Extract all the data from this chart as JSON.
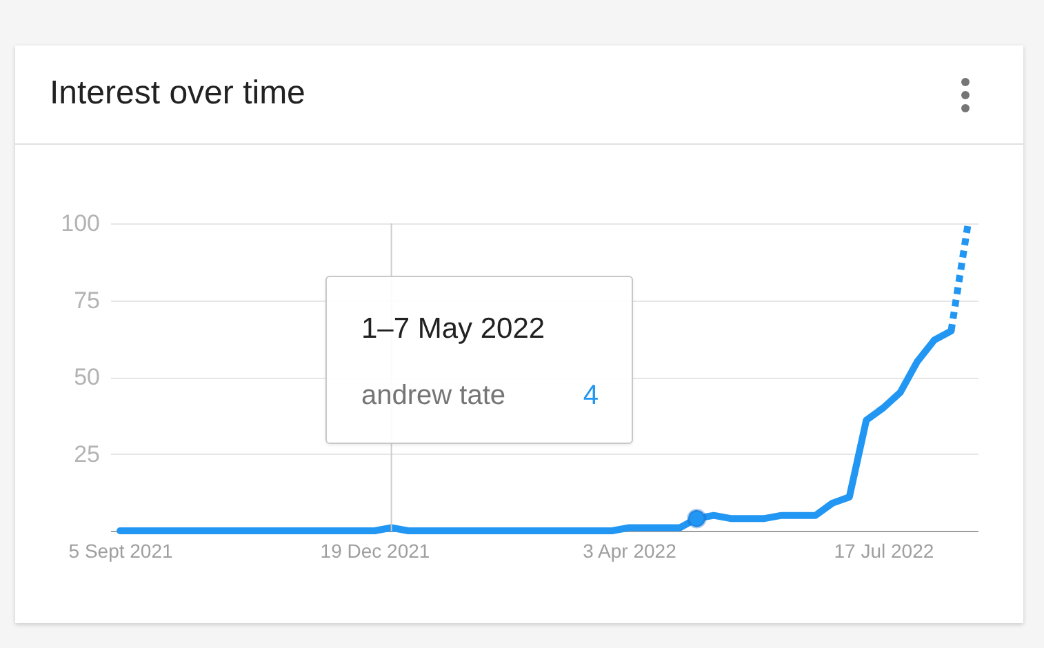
{
  "chart_data": {
    "type": "line",
    "title": "Interest over time",
    "x": [
      "2021-09-05",
      "2021-09-12",
      "2021-09-19",
      "2021-09-26",
      "2021-10-03",
      "2021-10-10",
      "2021-10-17",
      "2021-10-24",
      "2021-10-31",
      "2021-11-07",
      "2021-11-14",
      "2021-11-21",
      "2021-11-28",
      "2021-12-05",
      "2021-12-12",
      "2021-12-19",
      "2021-12-26",
      "2022-01-02",
      "2022-01-09",
      "2022-01-16",
      "2022-01-23",
      "2022-01-30",
      "2022-02-06",
      "2022-02-13",
      "2022-02-20",
      "2022-02-27",
      "2022-03-06",
      "2022-03-13",
      "2022-03-20",
      "2022-03-27",
      "2022-04-03",
      "2022-04-10",
      "2022-04-17",
      "2022-04-24",
      "2022-05-01",
      "2022-05-08",
      "2022-05-15",
      "2022-05-22",
      "2022-05-29",
      "2022-06-05",
      "2022-06-12",
      "2022-06-19",
      "2022-06-26",
      "2022-07-03",
      "2022-07-10",
      "2022-07-17",
      "2022-07-24",
      "2022-07-31",
      "2022-08-07",
      "2022-08-14",
      "2022-08-21"
    ],
    "series": [
      {
        "name": "andrew tate",
        "color": "#2196f3",
        "values": [
          0,
          0,
          0,
          0,
          0,
          0,
          0,
          0,
          0,
          0,
          0,
          0,
          0,
          0,
          0,
          0,
          1,
          0,
          0,
          0,
          0,
          0,
          0,
          0,
          0,
          0,
          0,
          0,
          0,
          0,
          1,
          1,
          1,
          1,
          4,
          5,
          4,
          4,
          4,
          5,
          5,
          5,
          9,
          11,
          36,
          40,
          45,
          55,
          62,
          65,
          null
        ]
      },
      {
        "color": "#2196f3",
        "line_style": "dotted",
        "values": [
          null,
          null,
          null,
          null,
          null,
          null,
          null,
          null,
          null,
          null,
          null,
          null,
          null,
          null,
          null,
          null,
          null,
          null,
          null,
          null,
          null,
          null,
          null,
          null,
          null,
          null,
          null,
          null,
          null,
          null,
          null,
          null,
          null,
          null,
          null,
          null,
          null,
          null,
          null,
          null,
          null,
          null,
          null,
          null,
          null,
          null,
          null,
          null,
          null,
          65,
          100
        ]
      },
      {
        "type": "scatter",
        "color": "#2196f3",
        "marker": "circle",
        "x": [
          "2022-05-01"
        ],
        "values": [
          4
        ]
      }
    ],
    "xlim": [
      "2021-09-01",
      "2022-08-25"
    ],
    "xticks": [
      {
        "value": "2021-09-05",
        "label": "5 Sept 2021"
      },
      {
        "value": "2021-12-19",
        "label": "19 Dec 2021"
      },
      {
        "value": "2022-04-03",
        "label": "3 Apr 2022"
      },
      {
        "value": "2022-07-17",
        "label": "17 Jul 2022"
      }
    ],
    "ylim": [
      0,
      100
    ],
    "yticks": [
      25,
      50,
      75,
      100
    ],
    "grid": "y",
    "line_style": "solid",
    "ref_lines": [
      {
        "axis": "x",
        "value": "2021-12-26",
        "color": "#cccccc"
      }
    ],
    "annotations": [
      "1–7 May 2022",
      "4"
    ]
  }
}
